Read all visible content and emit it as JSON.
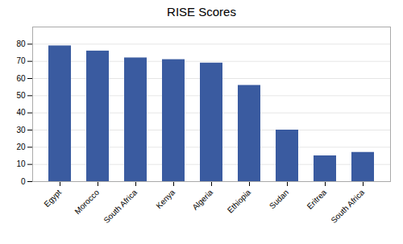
{
  "chart_data": {
    "type": "bar",
    "title": "RISE Scores",
    "categories": [
      "Egypt",
      "Morocco",
      "South Africa",
      "Kenya",
      "Algeria",
      "Ethiopia",
      "Sudan",
      "Eritrea",
      "South Africa"
    ],
    "values": [
      79,
      76,
      72,
      71,
      69,
      56,
      30,
      15,
      17
    ],
    "color": "#3A5BA0",
    "ylim": [
      0,
      90
    ],
    "yticks": [
      0,
      10,
      20,
      30,
      40,
      50,
      60,
      70,
      80
    ],
    "grid": true
  }
}
